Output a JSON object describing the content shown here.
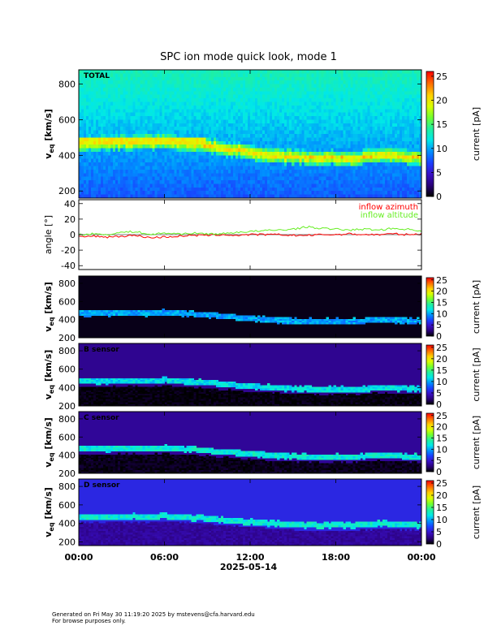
{
  "title": "SPC ion mode quick look, mode 1",
  "footer": {
    "line1": "Generated on Fri May 30 11:19:20 2025 by mstevens@cfa.harvard.edu",
    "line2": "For browse purposes only."
  },
  "colors": {
    "azimuth": "#ff0000",
    "altitude": "#66ee22",
    "colorbar": [
      "#000000",
      "#2a007a",
      "#3a10c8",
      "#1a40ff",
      "#0090ff",
      "#00e8e8",
      "#20f0a0",
      "#70ff30",
      "#d8ff00",
      "#ffd000",
      "#ff7000",
      "#ff0000"
    ]
  },
  "chart_data": [
    {
      "type": "heatmap",
      "name": "total-spectrogram",
      "label": "TOTAL",
      "ylabel_base": "v",
      "ylabel_sub": "eq",
      "ylabel_unit": "[km/s]",
      "ylim": [
        160,
        880
      ],
      "yticks": [
        200,
        400,
        600,
        800
      ],
      "colorbar": {
        "label": "current [pA]",
        "lim": [
          0,
          26
        ],
        "ticks": [
          0,
          5,
          10,
          15,
          20,
          25
        ]
      },
      "background_level": 0.37,
      "beam_level": 0.82
    },
    {
      "type": "line",
      "name": "inflow-angles",
      "ylabel": "angle [°]",
      "ylim": [
        -45,
        45
      ],
      "yticks": [
        -40,
        -20,
        0,
        20,
        40
      ],
      "legend_position": "top-right",
      "series": [
        {
          "name": "inflow azimuth",
          "color": "#ff0000",
          "x": [
            0,
            1,
            2,
            3,
            4,
            5,
            6,
            7,
            8,
            9,
            10,
            11,
            12,
            13,
            14,
            15,
            16,
            17,
            18,
            19,
            20,
            21,
            22,
            23,
            24
          ],
          "values": [
            -3,
            -2,
            -3,
            -2,
            -1,
            -4,
            -3,
            -2,
            -1,
            -1,
            0,
            -1,
            0,
            0,
            0,
            -1,
            -1,
            0,
            0,
            1,
            0,
            0,
            1,
            0,
            1
          ]
        },
        {
          "name": "inflow altitude",
          "color": "#66ee22",
          "x": [
            0,
            1,
            2,
            3,
            4,
            5,
            6,
            7,
            8,
            9,
            10,
            11,
            12,
            13,
            14,
            15,
            16,
            17,
            18,
            19,
            20,
            21,
            22,
            23,
            24
          ],
          "values": [
            0,
            1,
            0,
            3,
            4,
            0,
            2,
            1,
            2,
            1,
            1,
            3,
            4,
            5,
            6,
            7,
            10,
            8,
            7,
            6,
            7,
            6,
            8,
            7,
            5
          ]
        }
      ]
    },
    {
      "type": "heatmap",
      "name": "a-sensor-spectrogram",
      "label": "",
      "ylabel_base": "v",
      "ylabel_sub": "eq",
      "ylabel_unit": "[km/s]",
      "ylim": [
        200,
        880
      ],
      "yticks": [
        200,
        400,
        600,
        800
      ],
      "colorbar": {
        "label": "current [pA]",
        "lim": [
          0,
          26
        ],
        "ticks": [
          0,
          5,
          10,
          15,
          20,
          25
        ]
      },
      "background_level": 0.02,
      "beam_level": 0.38
    },
    {
      "type": "heatmap",
      "name": "b-sensor-spectrogram",
      "label": "B sensor",
      "ylabel_base": "v",
      "ylabel_sub": "eq",
      "ylabel_unit": "[km/s]",
      "ylim": [
        200,
        880
      ],
      "yticks": [
        200,
        400,
        600,
        800
      ],
      "colorbar": {
        "label": "current [pA]",
        "lim": [
          0,
          26
        ],
        "ticks": [
          0,
          5,
          10,
          15,
          20,
          25
        ]
      },
      "background_level": 0.13,
      "beam_level": 0.45
    },
    {
      "type": "heatmap",
      "name": "c-sensor-spectrogram",
      "label": "C sensor",
      "ylabel_base": "v",
      "ylabel_sub": "eq",
      "ylabel_unit": "[km/s]",
      "ylim": [
        200,
        880
      ],
      "yticks": [
        200,
        400,
        600,
        800
      ],
      "colorbar": {
        "label": "current [pA]",
        "lim": [
          0,
          26
        ],
        "ticks": [
          0,
          5,
          10,
          15,
          20,
          25
        ]
      },
      "background_level": 0.14,
      "beam_level": 0.48
    },
    {
      "type": "heatmap",
      "name": "d-sensor-spectrogram",
      "label": "D sensor",
      "ylabel_base": "v",
      "ylabel_sub": "eq",
      "ylabel_unit": "[km/s]",
      "ylim": [
        160,
        880
      ],
      "yticks": [
        200,
        400,
        600,
        800
      ],
      "colorbar": {
        "label": "current [pA]",
        "lim": [
          0,
          26
        ],
        "ticks": [
          0,
          5,
          10,
          15,
          20,
          25
        ]
      },
      "background_level": 0.25,
      "beam_level": 0.48
    }
  ],
  "x_axis": {
    "ticks": [
      "00:00",
      "06:00",
      "12:00",
      "18:00",
      "00:00"
    ],
    "tick_hours": [
      0,
      6,
      12,
      18,
      24
    ],
    "xlim_hours": [
      0,
      24
    ],
    "date_label": "2025-05-14"
  },
  "beam_velocity": {
    "hours": [
      0,
      2,
      4,
      5,
      6,
      7,
      8,
      9,
      10,
      11,
      12,
      13,
      14,
      15,
      16,
      17,
      18,
      19,
      20,
      21,
      22,
      23,
      24
    ],
    "values": [
      470,
      470,
      475,
      470,
      480,
      470,
      465,
      455,
      440,
      430,
      415,
      405,
      395,
      390,
      385,
      380,
      385,
      380,
      390,
      400,
      395,
      385,
      385
    ]
  }
}
